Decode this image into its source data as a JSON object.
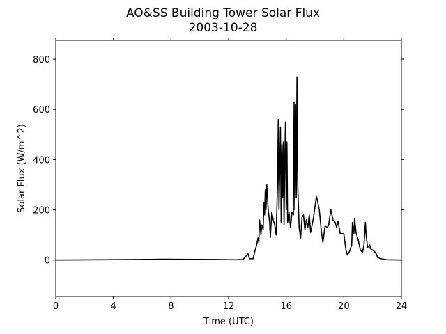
{
  "chart_data": {
    "type": "line",
    "title": "AO&SS Building Tower Solar Flux",
    "subtitle": "2003-10-28",
    "x_label": "Time (UTC)",
    "y_label": "Solar Flux (W/m^2)",
    "color": "#000000",
    "xlim": [
      0,
      24
    ],
    "ylim": [
      -145,
      875
    ],
    "xticks": [
      0,
      4,
      8,
      12,
      16,
      20,
      24
    ],
    "yticks": [
      0,
      200,
      400,
      600,
      800
    ],
    "series": [
      {
        "name": "Solar Flux",
        "x": [
          0,
          5.8,
          7.5,
          11,
          12.5,
          13.0,
          13.2,
          13.35,
          13.45,
          13.7,
          13.8,
          13.95,
          14.05,
          14.1,
          14.15,
          14.25,
          14.3,
          14.4,
          14.45,
          14.5,
          14.55,
          14.6,
          14.65,
          14.75,
          14.85,
          14.9,
          15.0,
          15.1,
          15.2,
          15.3,
          15.4,
          15.45,
          15.5,
          15.6,
          15.65,
          15.7,
          15.75,
          15.8,
          15.85,
          15.9,
          15.95,
          16.0,
          16.05,
          16.1,
          16.2,
          16.3,
          16.4,
          16.5,
          16.55,
          16.6,
          16.65,
          16.7,
          16.75,
          16.8,
          16.9,
          17.0,
          17.1,
          17.2,
          17.3,
          17.4,
          17.5,
          17.6,
          17.7,
          17.9,
          18.1,
          18.3,
          18.45,
          18.55,
          18.7,
          18.85,
          18.95,
          19.1,
          19.25,
          19.4,
          19.5,
          19.6,
          19.75,
          20.0,
          20.15,
          20.25,
          20.4,
          20.55,
          20.6,
          20.7,
          20.75,
          20.85,
          21.0,
          21.15,
          21.3,
          21.4,
          21.5,
          21.55,
          21.65,
          21.8,
          21.85,
          22.0,
          22.2,
          22.35,
          22.6,
          23.0,
          24.0
        ],
        "values": [
          0,
          2,
          3,
          2,
          1,
          2,
          15,
          25,
          5,
          5,
          30,
          60,
          90,
          70,
          160,
          100,
          140,
          120,
          230,
          180,
          280,
          200,
          300,
          200,
          150,
          90,
          190,
          160,
          140,
          100,
          300,
          560,
          200,
          530,
          150,
          460,
          250,
          470,
          140,
          380,
          550,
          200,
          470,
          150,
          190,
          130,
          190,
          180,
          630,
          200,
          620,
          250,
          730,
          300,
          130,
          85,
          170,
          180,
          120,
          160,
          130,
          180,
          110,
          170,
          255,
          200,
          110,
          70,
          135,
          130,
          140,
          200,
          160,
          150,
          130,
          155,
          105,
          105,
          40,
          20,
          35,
          60,
          150,
          105,
          165,
          110,
          80,
          40,
          30,
          60,
          150,
          100,
          50,
          60,
          45,
          40,
          30,
          10,
          5,
          1,
          0
        ]
      }
    ]
  }
}
